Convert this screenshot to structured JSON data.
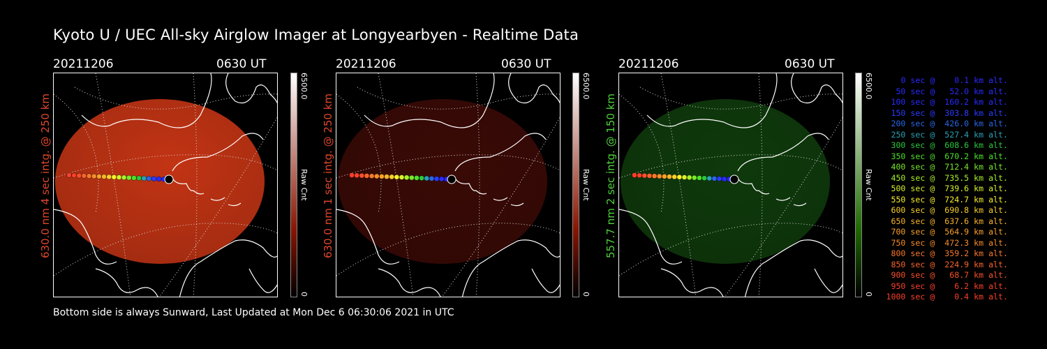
{
  "title": "Kyoto U / UEC All-sky Airglow Imager at Longyearbyen - Realtime Data",
  "footer": "Bottom side is always Sunward, Last Updated at Mon Dec  6 06:30:06 2021 in UTC",
  "panels": [
    {
      "date": "20211206",
      "time": "0630 UT",
      "side_label": "630.0 nm 4 sec intg. @ 250 km",
      "side_color": "#e0462c",
      "cbar_max": "6500.0",
      "cbar_min": "0",
      "cbar_unit": "Raw Cnt",
      "glow_color": "#c23414",
      "cbar_top": "#ffffff",
      "cbar_bottom": "#8a1500"
    },
    {
      "date": "20211206",
      "time": "0630 UT",
      "side_label": "630.0 nm 1 sec intg. @ 250 km",
      "side_color": "#e0462c",
      "cbar_max": "6500.0",
      "cbar_min": "0",
      "cbar_unit": "Raw Cnt",
      "glow_color": "#3a0a06",
      "cbar_top": "#ffffff",
      "cbar_bottom": "#8a1500"
    },
    {
      "date": "20211206",
      "time": "0630 UT",
      "side_label": "557.7 nm 2 sec intg. @ 150 km",
      "side_color": "#4fd13a",
      "cbar_max": "6500.0",
      "cbar_min": "0",
      "cbar_unit": "Raw Cnt",
      "glow_color": "#0f3a0c",
      "cbar_top": "#ffffff",
      "cbar_bottom": "#1f6a00"
    }
  ],
  "legend": [
    {
      "text": "0 sec @    0.1 km alt.",
      "color": "#2a2aff"
    },
    {
      "text": "50 sec @   52.0 km alt.",
      "color": "#2a2aff"
    },
    {
      "text": "100 sec @  160.2 km alt.",
      "color": "#2a2aff"
    },
    {
      "text": "150 sec @  303.8 km alt.",
      "color": "#2a3cff"
    },
    {
      "text": "200 sec @  426.0 km alt.",
      "color": "#2a66e6"
    },
    {
      "text": "250 sec @  527.4 km alt.",
      "color": "#2aa0b4"
    },
    {
      "text": "300 sec @  608.6 km alt.",
      "color": "#2ac83c"
    },
    {
      "text": "350 sec @  670.2 km alt.",
      "color": "#4ee02a"
    },
    {
      "text": "400 sec @  712.4 km alt.",
      "color": "#78e82a"
    },
    {
      "text": "450 sec @  735.5 km alt.",
      "color": "#a8f02a"
    },
    {
      "text": "500 sec @  739.6 km alt.",
      "color": "#d8f02a"
    },
    {
      "text": "550 sec @  724.7 km alt.",
      "color": "#f8f02a"
    },
    {
      "text": "600 sec @  690.8 km alt.",
      "color": "#f8d02a"
    },
    {
      "text": "650 sec @  637.6 km alt.",
      "color": "#f8b42a"
    },
    {
      "text": "700 sec @  564.9 km alt.",
      "color": "#f8a02a"
    },
    {
      "text": "750 sec @  472.3 km alt.",
      "color": "#f88c2a"
    },
    {
      "text": "800 sec @  359.2 km alt.",
      "color": "#f8782a"
    },
    {
      "text": "850 sec @  224.9 km alt.",
      "color": "#f8642a"
    },
    {
      "text": "900 sec @   68.7 km alt.",
      "color": "#f8502a"
    },
    {
      "text": "950 sec @    6.2 km alt.",
      "color": "#f8402a"
    },
    {
      "text": "1000 sec @    0.4 km alt.",
      "color": "#f8402a"
    }
  ]
}
